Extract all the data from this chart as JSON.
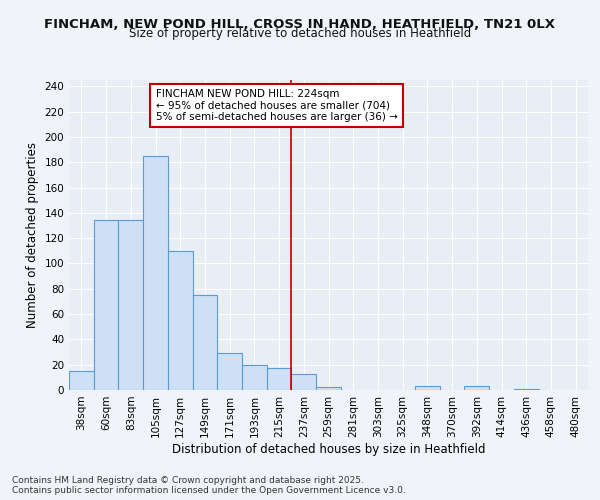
{
  "title_line1": "FINCHAM, NEW POND HILL, CROSS IN HAND, HEATHFIELD, TN21 0LX",
  "title_line2": "Size of property relative to detached houses in Heathfield",
  "xlabel": "Distribution of detached houses by size in Heathfield",
  "ylabel": "Number of detached properties",
  "categories": [
    "38sqm",
    "60sqm",
    "83sqm",
    "105sqm",
    "127sqm",
    "149sqm",
    "171sqm",
    "193sqm",
    "215sqm",
    "237sqm",
    "259sqm",
    "281sqm",
    "303sqm",
    "325sqm",
    "348sqm",
    "370sqm",
    "392sqm",
    "414sqm",
    "436sqm",
    "458sqm",
    "480sqm"
  ],
  "values": [
    15,
    134,
    134,
    185,
    110,
    75,
    29,
    20,
    17,
    13,
    2,
    0,
    0,
    0,
    3,
    0,
    3,
    0,
    1,
    0,
    0
  ],
  "bar_fill_color": "#cde0f5",
  "bar_edge_color": "#5b9bd5",
  "vline_color": "#c00000",
  "annotation_text": "FINCHAM NEW POND HILL: 224sqm\n← 95% of detached houses are smaller (704)\n5% of semi-detached houses are larger (36) →",
  "annotation_box_color": "#ffffff",
  "annotation_box_edge_color": "#c00000",
  "ylim": [
    0,
    245
  ],
  "yticks": [
    0,
    20,
    40,
    60,
    80,
    100,
    120,
    140,
    160,
    180,
    200,
    220,
    240
  ],
  "background_color": "#f0f4f9",
  "plot_bg_color": "#e8eef5",
  "grid_color": "#ffffff",
  "title_fontsize": 9.5,
  "subtitle_fontsize": 8.5,
  "axis_label_fontsize": 8.5,
  "tick_fontsize": 7.5,
  "annotation_fontsize": 7.5,
  "footnote_fontsize": 6.5,
  "footnote": "Contains HM Land Registry data © Crown copyright and database right 2025.\nContains public sector information licensed under the Open Government Licence v3.0.",
  "vline_position": 8.5
}
